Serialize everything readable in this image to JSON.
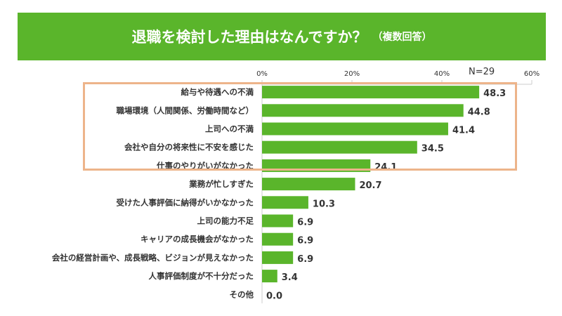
{
  "chart_data": {
    "type": "bar",
    "orientation": "horizontal",
    "title": "退職を検討した理由はなんですか？",
    "subtitle": "（複数回答）",
    "annotation": "N=29",
    "categories": [
      "給与や待遇への不満",
      "職場環境（人間関係、労働時間など）",
      "上司への不満",
      "会社や自分の将来性に不安を感じた",
      "仕事のやりがいがなかった",
      "業務が忙しすぎた",
      "受けた人事評価に納得がいかなかった",
      "上司の能力不足",
      "キャリアの成長機会がなかった",
      "会社の経営計画や、成長戦略、ビジョンが見えなかった",
      "人事評価制度が不十分だった",
      "その他"
    ],
    "values": [
      48.3,
      44.8,
      41.4,
      34.5,
      24.1,
      20.7,
      10.3,
      6.9,
      6.9,
      6.9,
      3.4,
      0.0
    ],
    "xlim": [
      0,
      60
    ],
    "xticks": [
      "0%",
      "20%",
      "40%",
      "60%"
    ],
    "highlighted_top": 5,
    "colors": {
      "bar": "#5ab52b",
      "banner": "#5ab52b",
      "highlight_border": "#edb48a"
    }
  }
}
